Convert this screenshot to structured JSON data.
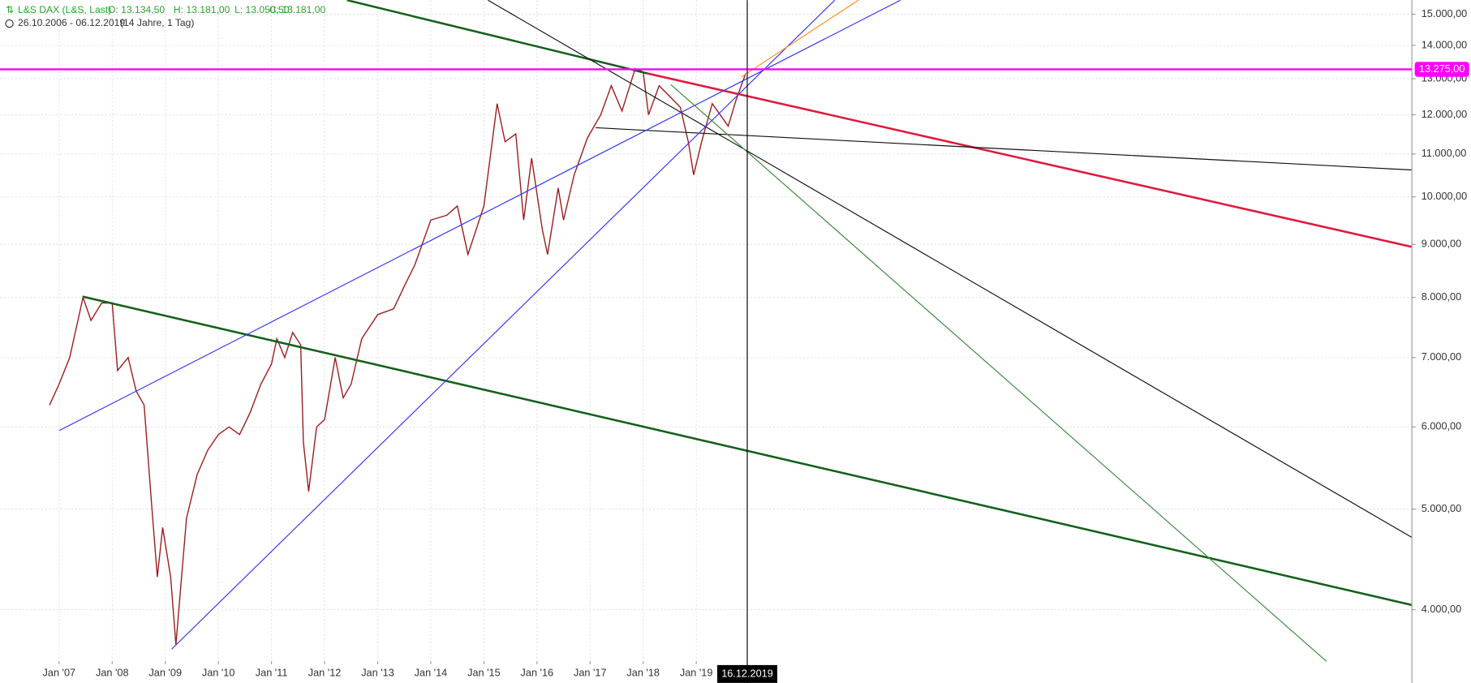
{
  "header": {
    "instrument": "L&S DAX (L&S, Last)",
    "open": "O: 13.134,50",
    "high": "H: 13.181,00",
    "low": "L: 13.050,50",
    "close": "C: 13.181,00",
    "period": "26.10.2006 - 06.12.2019",
    "span": "(14 Jahre, 1 Tag)"
  },
  "chart_data": {
    "type": "line",
    "color": "#9b1c1c",
    "log_scale": true,
    "grid": true,
    "x": [
      2006.82,
      2007.0,
      2007.2,
      2007.45,
      2007.6,
      2007.8,
      2008.0,
      2008.1,
      2008.3,
      2008.45,
      2008.6,
      2008.75,
      2008.85,
      2008.95,
      2009.1,
      2009.2,
      2009.4,
      2009.6,
      2009.8,
      2010.0,
      2010.2,
      2010.4,
      2010.6,
      2010.8,
      2011.0,
      2011.1,
      2011.25,
      2011.4,
      2011.55,
      2011.6,
      2011.7,
      2011.85,
      2012.0,
      2012.2,
      2012.35,
      2012.5,
      2012.7,
      2013.0,
      2013.3,
      2013.5,
      2013.7,
      2014.0,
      2014.3,
      2014.5,
      2014.7,
      2015.0,
      2015.25,
      2015.4,
      2015.6,
      2015.75,
      2015.9,
      2016.1,
      2016.2,
      2016.4,
      2016.5,
      2016.7,
      2016.95,
      2017.2,
      2017.4,
      2017.6,
      2017.85,
      2018.0,
      2018.1,
      2018.3,
      2018.5,
      2018.7,
      2018.85,
      2018.95,
      2019.1,
      2019.3,
      2019.45,
      2019.6,
      2019.75,
      2019.93
    ],
    "values": [
      6300,
      6600,
      7000,
      8000,
      7600,
      7900,
      7900,
      6800,
      7000,
      6500,
      6300,
      5000,
      4300,
      4800,
      4300,
      3700,
      4900,
      5400,
      5700,
      5900,
      6000,
      5900,
      6200,
      6600,
      6900,
      7300,
      7000,
      7400,
      7200,
      5800,
      5200,
      6000,
      6100,
      7000,
      6400,
      6600,
      7300,
      7700,
      7800,
      8200,
      8600,
      9500,
      9600,
      9800,
      8800,
      9800,
      12300,
      11300,
      11500,
      9500,
      10900,
      9300,
      8800,
      10200,
      9500,
      10500,
      11400,
      12000,
      12800,
      12100,
      13300,
      13200,
      12000,
      12800,
      12500,
      12200,
      11300,
      10500,
      11300,
      12300,
      12000,
      11700,
      12400,
      13150
    ],
    "xlim": [
      2005.887,
      2032.477
    ],
    "ylim": [
      3566,
      15480
    ],
    "xticks": [
      {
        "value": 2007,
        "label": "Jan '07"
      },
      {
        "value": 2008,
        "label": "Jan '08"
      },
      {
        "value": 2009,
        "label": "Jan '09"
      },
      {
        "value": 2010,
        "label": "Jan '10"
      },
      {
        "value": 2011,
        "label": "Jan '11"
      },
      {
        "value": 2012,
        "label": "Jan '12"
      },
      {
        "value": 2013,
        "label": "Jan '13"
      },
      {
        "value": 2014,
        "label": "Jan '14"
      },
      {
        "value": 2015,
        "label": "Jan '15"
      },
      {
        "value": 2016,
        "label": "Jan '16"
      },
      {
        "value": 2017,
        "label": "Jan '17"
      },
      {
        "value": 2018,
        "label": "Jan '18"
      },
      {
        "value": 2019,
        "label": "Jan '19"
      }
    ],
    "yticks": [
      {
        "value": 4000,
        "label": "4.000,00"
      },
      {
        "value": 5000,
        "label": "5.000,00"
      },
      {
        "value": 6000,
        "label": "6.000,00"
      },
      {
        "value": 7000,
        "label": "7.000,00"
      },
      {
        "value": 8000,
        "label": "8.000,00"
      },
      {
        "value": 9000,
        "label": "9.000,00"
      },
      {
        "value": 10000,
        "label": "10.000,00"
      },
      {
        "value": 11000,
        "label": "11.000,00"
      },
      {
        "value": 12000,
        "label": "12.000,00"
      },
      {
        "value": 13000,
        "label": "13.000,00"
      },
      {
        "value": 14000,
        "label": "14.000,00"
      },
      {
        "value": 15000,
        "label": "15.000,00"
      }
    ],
    "trendlines": [
      {
        "color": "#14601a",
        "width": 2.2,
        "points": [
          [
            2012.42,
            15480
          ],
          [
            2018.078,
            13155
          ]
        ]
      },
      {
        "color": "#14601a",
        "width": 2.2,
        "points": [
          [
            2007.442,
            8015
          ],
          [
            2032.477,
            4041
          ]
        ]
      },
      {
        "color": "#e0183c",
        "width": 2.2,
        "points": [
          [
            2018.078,
            13155
          ],
          [
            2032.477,
            8950
          ]
        ]
      },
      {
        "color": "#111111",
        "width": 1,
        "points": [
          [
            2015.074,
            15480
          ],
          [
            2032.477,
            4695
          ]
        ]
      },
      {
        "color": "#111111",
        "width": 1,
        "points": [
          [
            2017.106,
            11660
          ],
          [
            2032.477,
            10617
          ]
        ]
      },
      {
        "color": "#3333ff",
        "width": 1,
        "points": [
          [
            2007.0,
            5952
          ],
          [
            2022.848,
            15480
          ]
        ]
      },
      {
        "color": "#3333ff",
        "width": 1,
        "points": [
          [
            2009.12,
            3664
          ],
          [
            2021.61,
            15480
          ]
        ]
      },
      {
        "color": "#ff8c1a",
        "width": 1,
        "points": [
          [
            2019.845,
            13047
          ],
          [
            2022.053,
            15480
          ]
        ]
      },
      {
        "color": "#3a8a3a",
        "width": 1,
        "points": [
          [
            2018.52,
            12832
          ],
          [
            2031.33,
            3399
          ]
        ]
      }
    ],
    "price_line": {
      "value": 13275,
      "label": "13.275,00",
      "color": "#ff00ff"
    },
    "crosshair": {
      "x": 2019.96,
      "label": "16.12.2019"
    }
  }
}
